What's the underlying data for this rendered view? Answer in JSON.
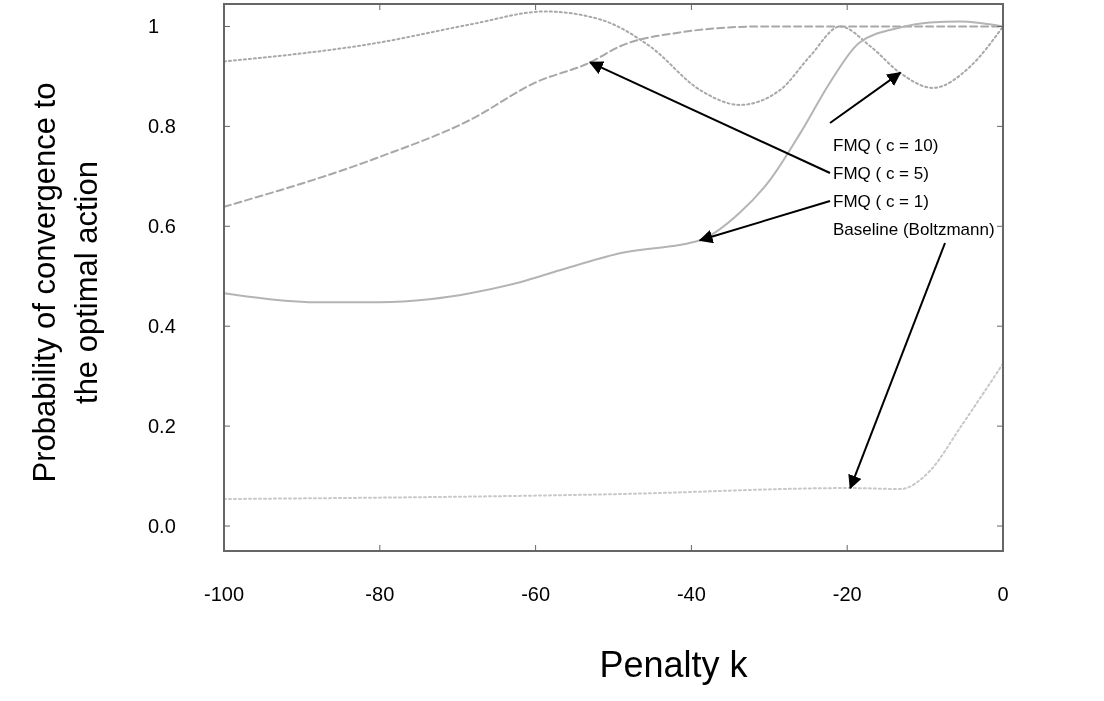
{
  "chart_data": {
    "type": "line",
    "xlabel": "Penalty k",
    "ylabel": "Probability of convergence to the optimal action",
    "xlim": [
      -100,
      0
    ],
    "xticks": [
      -100,
      -80,
      -60,
      -40,
      -20,
      0
    ],
    "ylim": [
      -0.05,
      1.045
    ],
    "yticks": [
      {
        "value": 0,
        "label": "0.0"
      },
      0.2,
      0.4,
      0.6,
      0.8,
      1
    ],
    "grid": false,
    "marker": "none",
    "series": [
      {
        "color": "#a8a8a8",
        "line_style": "dotted",
        "x": [
          -100,
          -80,
          -68.4,
          -58.8,
          -51.7,
          -45.3,
          -38.9,
          -33.8,
          -28.6,
          -24.8,
          -20.9,
          -17,
          -13.2,
          -9,
          -4.2,
          0
        ],
        "values": [
          0.93,
          0.968,
          1.004,
          1.03,
          1.014,
          0.96,
          0.873,
          0.843,
          0.873,
          0.94,
          1.0,
          0.96,
          0.907,
          0.877,
          0.92,
          1.0
        ]
      },
      {
        "color": "#a8a8a8",
        "line_style": "dashed",
        "x": [
          -100,
          -80,
          -68.4,
          -60,
          -53,
          -49.2,
          -41.5,
          -31.2,
          -20,
          -10,
          0
        ],
        "values": [
          0.639,
          0.739,
          0.813,
          0.888,
          0.928,
          0.96,
          0.988,
          1.0,
          1.0,
          1.0,
          1.0
        ]
      },
      {
        "color": "#b4b4b4",
        "line_style": "solid",
        "x": [
          -100,
          -87.7,
          -80,
          -73.6,
          -68.4,
          -62,
          -56.9,
          -49.2,
          -38.9,
          -33.8,
          -29.9,
          -26,
          -22.2,
          -18.4,
          -13.2,
          -9.4,
          -5.5,
          0
        ],
        "values": [
          0.466,
          0.448,
          0.448,
          0.454,
          0.466,
          0.488,
          0.512,
          0.546,
          0.572,
          0.627,
          0.693,
          0.787,
          0.888,
          0.968,
          0.998,
          1.008,
          1.01,
          1.0
        ]
      },
      {
        "color": "#c8c8c8",
        "line_style": "dotted",
        "x": [
          -100,
          -49.2,
          -19.6,
          -13.2,
          -9.4,
          -5.5,
          0
        ],
        "values": [
          0.054,
          0.064,
          0.076,
          0.074,
          0.11,
          0.197,
          0.325
        ]
      }
    ],
    "annotations": [
      {
        "text": "FMQ ( c = 10)",
        "x": -13.2,
        "y": 0.907
      },
      {
        "text": "FMQ ( c = 5)",
        "x": -53,
        "y": 0.928
      },
      {
        "text": "FMQ ( c = 1)",
        "x": -38.9,
        "y": 0.572
      },
      {
        "text": "Baseline (Boltzmann)",
        "x": -19.6,
        "y": 0.076
      }
    ]
  }
}
